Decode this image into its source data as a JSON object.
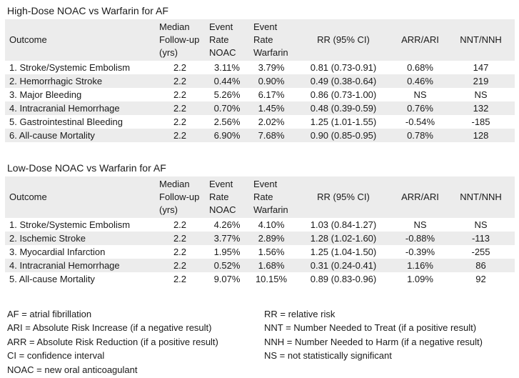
{
  "colors": {
    "background": "#FFFFFF",
    "stripe": "#ECECEC",
    "text": "#1A1A1A"
  },
  "high_dose": {
    "title": "High-Dose NOAC vs Warfarin for AF",
    "headers": {
      "outcome": "Outcome",
      "median_followup": "Median\nFollow-up\n(yrs)",
      "event_rate_noac": "Event\nRate\nNOAC",
      "event_rate_warfarin": "Event\nRate\nWarfarin",
      "rr_ci": "RR (95% CI)",
      "arr_ari": "ARR/ARI",
      "nnt_nnh": "NNT/NNH"
    },
    "rows": [
      [
        "1. Stroke/Systemic Embolism",
        "2.2",
        "3.11%",
        "3.79%",
        "0.81 (0.73-0.91)",
        "0.68%",
        "147"
      ],
      [
        "2. Hemorrhagic Stroke",
        "2.2",
        "0.44%",
        "0.90%",
        "0.49 (0.38-0.64)",
        "0.46%",
        "219"
      ],
      [
        "3. Major Bleeding",
        "2.2",
        "5.26%",
        "6.17%",
        "0.86 (0.73-1.00)",
        "NS",
        "NS"
      ],
      [
        "4. Intracranial Hemorrhage",
        "2.2",
        "0.70%",
        "1.45%",
        "0.48 (0.39-0.59)",
        "0.76%",
        "132"
      ],
      [
        "5. Gastrointestinal Bleeding",
        "2.2",
        "2.56%",
        "2.02%",
        "1.25 (1.01-1.55)",
        "-0.54%",
        "-185"
      ],
      [
        "6. All-cause Mortality",
        "2.2",
        "6.90%",
        "7.68%",
        "0.90 (0.85-0.95)",
        "0.78%",
        "128"
      ]
    ]
  },
  "low_dose": {
    "title": "Low-Dose NOAC vs Warfarin for AF",
    "headers": {
      "outcome": "Outcome",
      "median_followup": "Median\nFollow-up\n(yrs)",
      "event_rate_noac": "Event\nRate\nNOAC",
      "event_rate_warfarin": "Event\nRate\nWarfarin",
      "rr_ci": "RR (95% CI)",
      "arr_ari": "ARR/ARI",
      "nnt_nnh": "NNT/NNH"
    },
    "rows": [
      [
        "1. Stroke/Systemic Embolism",
        "2.2",
        "4.26%",
        "4.10%",
        "1.03 (0.84-1.27)",
        "NS",
        "NS"
      ],
      [
        "2. Ischemic Stroke",
        "2.2",
        "3.77%",
        "2.89%",
        "1.28 (1.02-1.60)",
        "-0.88%",
        "-113"
      ],
      [
        "3. Myocardial Infarction",
        "2.2",
        "1.95%",
        "1.56%",
        "1.25 (1.04-1.50)",
        "-0.39%",
        "-255"
      ],
      [
        "4. Intracranial Hemorrhage",
        "2.2",
        "0.52%",
        "1.68%",
        "0.31 (0.24-0.41)",
        "1.16%",
        "86"
      ],
      [
        "5. All-cause Mortality",
        "2.2",
        "9.07%",
        "10.15%",
        "0.89 (0.83-0.96)",
        "1.09%",
        "92"
      ]
    ]
  },
  "legend": {
    "left": [
      "AF = atrial fibrillation",
      "ARI = Absolute Risk Increase (if a negative result)",
      "ARR = Absolute Risk Reduction (if a positive result)",
      "CI = confidence interval",
      "NOAC = new oral anticoagulant"
    ],
    "right": [
      "RR = relative risk",
      "NNT = Number Needed to Treat (if a positive result)",
      "NNH = Number Needed to Harm (if a negative result)",
      "NS = not statistically significant"
    ]
  }
}
